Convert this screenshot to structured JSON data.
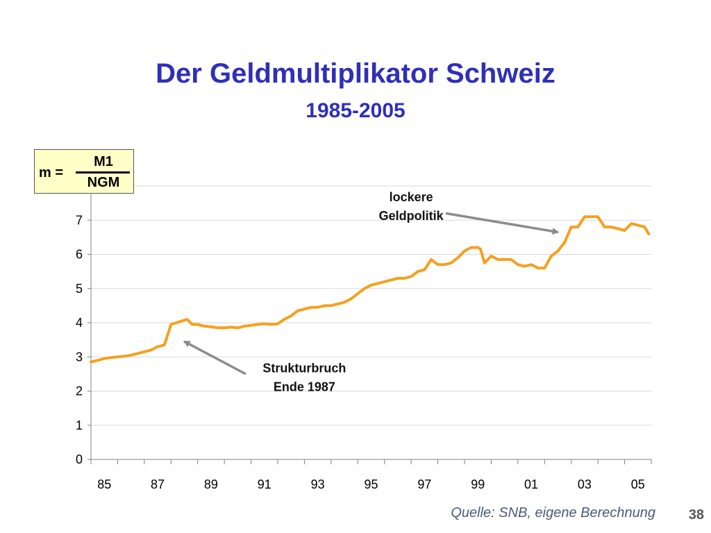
{
  "slide": {
    "title": "Der Geldmultiplikator Schweiz",
    "subtitle": "1985-2005",
    "source": "Quelle: SNB, eigene Berechnung",
    "page_number": "38"
  },
  "formula": {
    "lhs": "m =",
    "numerator": "M1",
    "denominator": "NGM"
  },
  "colors": {
    "title": "#2f2fb8",
    "line": "#f5a01e",
    "arrow": "#8c8c8c",
    "formula_bg": "#ffffc8"
  },
  "chart_data": {
    "type": "line",
    "title": "",
    "xlabel": "",
    "ylabel": "",
    "ylim": [
      0,
      8
    ],
    "xlim": [
      1985,
      2006
    ],
    "y_ticks": [
      "0",
      "1",
      "2",
      "3",
      "4",
      "5",
      "6",
      "7"
    ],
    "x_tick_labels": [
      "85",
      "87",
      "89",
      "91",
      "93",
      "95",
      "97",
      "99",
      "01",
      "03",
      "05"
    ],
    "grid": true,
    "legend": "none",
    "series": [
      {
        "x": [
          1985.0,
          1985.25,
          1985.5,
          1985.75,
          1986.0,
          1986.25,
          1986.5,
          1986.75,
          1987.0,
          1987.25,
          1987.5,
          1987.75,
          1987.9,
          1988.0,
          1988.2,
          1988.4,
          1988.6,
          1988.8,
          1989.0,
          1989.25,
          1989.5,
          1989.75,
          1990.0,
          1990.25,
          1990.5,
          1990.75,
          1991.0,
          1991.25,
          1991.5,
          1991.75,
          1992.0,
          1992.25,
          1992.5,
          1992.75,
          1993.0,
          1993.25,
          1993.5,
          1993.75,
          1994.0,
          1994.25,
          1994.5,
          1994.75,
          1995.0,
          1995.25,
          1995.5,
          1995.75,
          1996.0,
          1996.25,
          1996.5,
          1996.75,
          1997.0,
          1997.25,
          1997.5,
          1997.75,
          1998.0,
          1998.25,
          1998.5,
          1998.75,
          1999.0,
          1999.25,
          1999.5,
          1999.6,
          1999.75,
          2000.0,
          2000.25,
          2000.5,
          2000.75,
          2001.0,
          2001.25,
          2001.5,
          2001.75,
          2002.0,
          2002.25,
          2002.5,
          2002.75,
          2003.0,
          2003.25,
          2003.5,
          2003.75,
          2004.0,
          2004.25,
          2004.5,
          2004.75,
          2005.0,
          2005.25,
          2005.5,
          2005.75,
          2005.9
        ],
        "y": [
          2.85,
          2.9,
          2.95,
          2.98,
          3.0,
          3.02,
          3.05,
          3.1,
          3.15,
          3.2,
          3.3,
          3.35,
          3.7,
          3.95,
          4.0,
          4.05,
          4.1,
          3.95,
          3.95,
          3.9,
          3.88,
          3.85,
          3.85,
          3.87,
          3.85,
          3.9,
          3.92,
          3.95,
          3.97,
          3.95,
          3.97,
          4.1,
          4.2,
          4.35,
          4.4,
          4.45,
          4.45,
          4.5,
          4.5,
          4.55,
          4.6,
          4.7,
          4.85,
          5.0,
          5.1,
          5.15,
          5.2,
          5.25,
          5.3,
          5.3,
          5.35,
          5.5,
          5.55,
          5.85,
          5.7,
          5.7,
          5.75,
          5.9,
          6.1,
          6.2,
          6.2,
          6.15,
          5.75,
          5.95,
          5.85,
          5.85,
          5.85,
          5.7,
          5.65,
          5.7,
          5.6,
          5.6,
          5.95,
          6.1,
          6.35,
          6.8,
          6.8,
          7.1,
          7.1,
          7.1,
          6.8,
          6.8,
          6.75,
          6.7,
          6.9,
          6.85,
          6.8,
          6.6
        ]
      }
    ],
    "annotations": [
      {
        "text_line1": "lockere",
        "text_line2": "Geldpolitik",
        "label_x": 1997.0,
        "label_y": 7.55,
        "arrow_from": [
          1998.3,
          7.2
        ],
        "arrow_to": [
          2002.5,
          6.65
        ]
      },
      {
        "text_line1": "Strukturbruch",
        "text_line2": "Ende 1987",
        "label_x": 1993.0,
        "label_y": 2.55,
        "arrow_from": [
          1990.8,
          2.5
        ],
        "arrow_to": [
          1988.5,
          3.45
        ]
      }
    ]
  }
}
